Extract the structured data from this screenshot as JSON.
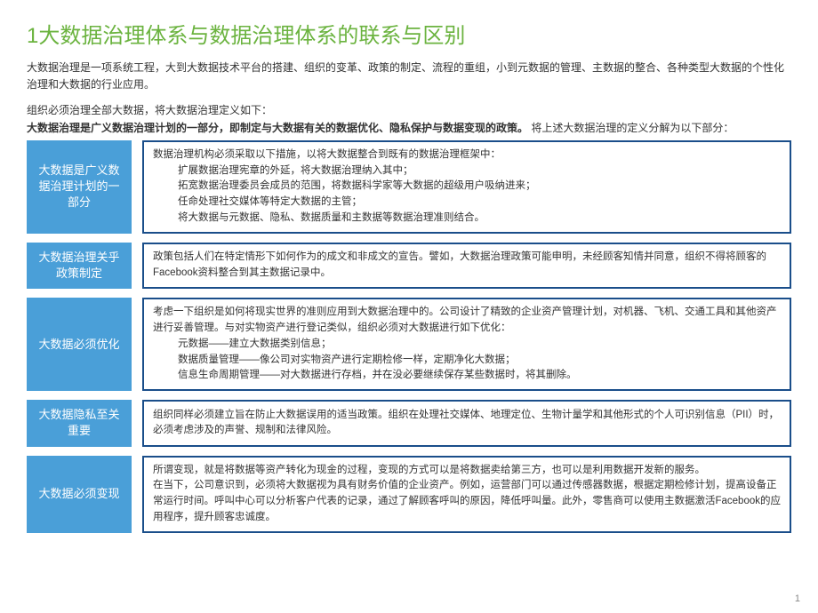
{
  "title": "1大数据治理体系与数据治理体系的联系与区别",
  "intro1": "大数据治理是一项系统工程，大到大数据技术平台的搭建、组织的变革、政策的制定、流程的重组，小到元数据的管理、主数据的整合、各种类型大数据的个性化治理和大数据的行业应用。",
  "intro2_pre": "组织必须治理全部大数据，将大数据治理定义如下：",
  "intro2_bold": "大数据治理是广义数据治理计划的一部分，即制定与大数据有关的数据优化、隐私保护与数据变现的政策。",
  "intro2_post": " 将上述大数据治理的定义分解为以下部分：",
  "sections": [
    {
      "label": "大数据是广义数据治理计划的一部分",
      "lines": [
        "数据治理机构必须采取以下措施，以将大数据整合到既有的数据治理框架中：",
        "扩展数据治理宪章的外延，将大数据治理纳入其中；",
        "拓宽数据治理委员会成员的范围，将数据科学家等大数据的超级用户吸纳进来；",
        "任命处理社交媒体等特定大数据的主管；",
        "将大数据与元数据、隐私、数据质量和主数据等数据治理准则结合。"
      ],
      "indents": [
        false,
        true,
        true,
        true,
        true
      ]
    },
    {
      "label": "大数据治理关乎政策制定",
      "lines": [
        "政策包括人们在特定情形下如何作为的成文和非成文的宣告。譬如，大数据治理政策可能申明，未经顾客知情并同意，组织不得将顾客的Facebook资料整合到其主数据记录中。"
      ],
      "indents": [
        false
      ]
    },
    {
      "label": "大数据必须优化",
      "lines": [
        "考虑一下组织是如何将现实世界的准则应用到大数据治理中的。公司设计了精致的企业资产管理计划，对机器、飞机、交通工具和其他资产进行妥善管理。与对实物资产进行登记类似，组织必须对大数据进行如下优化：",
        "元数据——建立大数据类别信息；",
        "数据质量管理——像公司对实物资产进行定期检修一样，定期净化大数据；",
        "信息生命周期管理——对大数据进行存档，并在没必要继续保存某些数据时，将其删除。"
      ],
      "indents": [
        false,
        true,
        true,
        true
      ]
    },
    {
      "label": "大数据隐私至关重要",
      "lines": [
        "组织同样必须建立旨在防止大数据误用的适当政策。组织在处理社交媒体、地理定位、生物计量学和其他形式的个人可识别信息（PII）时，必须考虑涉及的声誉、规制和法律风险。"
      ],
      "indents": [
        false
      ]
    },
    {
      "label": "大数据必须变现",
      "lines": [
        "所谓变现，就是将数据等资产转化为现金的过程，变现的方式可以是将数据卖给第三方，也可以是利用数据开发新的服务。",
        "在当下，公司意识到，必须将大数据视为具有财务价值的企业资产。例如，运营部门可以通过传感器数据，根据定期检修计划，提高设备正常运行时间。呼叫中心可以分析客户代表的记录，通过了解顾客呼叫的原因，降低呼叫量。此外，零售商可以使用主数据激活Facebook的应用程序，提升顾客忠诚度。"
      ],
      "indents": [
        false,
        false
      ]
    }
  ],
  "page_num": "1",
  "colors": {
    "title": "#6bb33f",
    "label_bg": "#4a9fd8",
    "box_border": "#1a4e8a"
  }
}
